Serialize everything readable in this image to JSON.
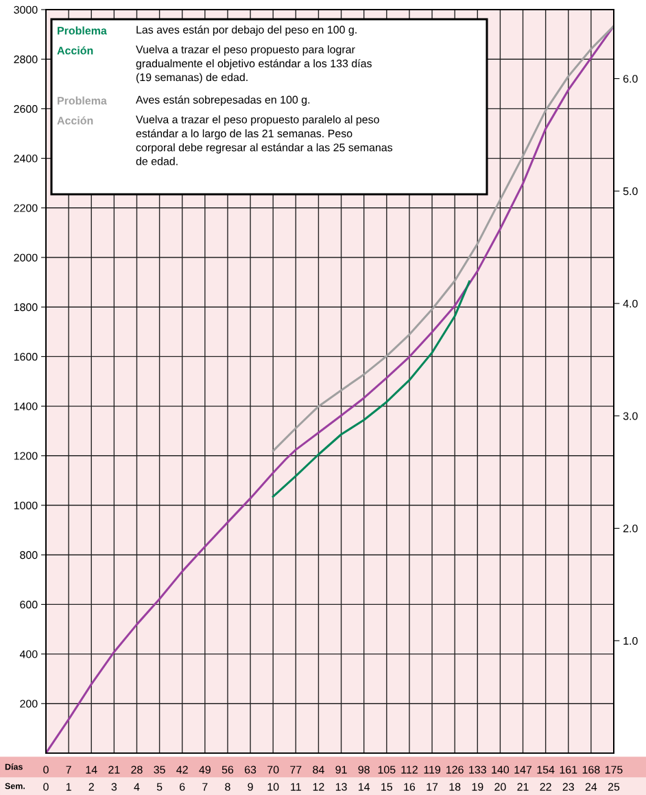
{
  "chart_data": {
    "type": "line",
    "xlabel": "Días",
    "x2label": "Sem.",
    "xlim": [
      0,
      175
    ],
    "xticks": [
      0,
      7,
      14,
      21,
      28,
      35,
      42,
      49,
      56,
      63,
      70,
      77,
      84,
      91,
      98,
      105,
      112,
      119,
      126,
      133,
      140,
      147,
      154,
      161,
      168,
      175
    ],
    "x2lim": [
      0,
      25
    ],
    "x2ticks": [
      0,
      1,
      2,
      3,
      4,
      5,
      6,
      7,
      8,
      9,
      10,
      11,
      12,
      13,
      14,
      15,
      16,
      17,
      18,
      19,
      20,
      21,
      22,
      23,
      24,
      25
    ],
    "ylim": [
      0,
      3000
    ],
    "yticks": [
      200,
      400,
      600,
      800,
      1000,
      1200,
      1400,
      1600,
      1800,
      2000,
      2200,
      2400,
      2600,
      2800,
      3000
    ],
    "y2lim": [
      0,
      6.614
    ],
    "y2ticks": [
      {
        "value": 1,
        "label": "1.0"
      },
      {
        "value": 2,
        "label": "2.0"
      },
      {
        "value": 3,
        "label": "3.0"
      },
      {
        "value": 4,
        "label": "4.0"
      },
      {
        "value": 5,
        "label": "5.0"
      },
      {
        "value": 6,
        "label": "6.0"
      }
    ],
    "grid": true,
    "line_style": "solid",
    "marker": "none",
    "series": [
      {
        "color": "#9b3fa0",
        "x": [
          0,
          7,
          14,
          21,
          28,
          35,
          42,
          49,
          56,
          63,
          70,
          74,
          77,
          84,
          91,
          98,
          105,
          112,
          119,
          126,
          133,
          140,
          147,
          154,
          161,
          168,
          175
        ],
        "values": [
          0,
          136,
          278,
          408,
          519,
          622,
          733,
          833,
          931,
          1028,
          1131,
          1187,
          1224,
          1293,
          1362,
          1433,
          1514,
          1599,
          1699,
          1805,
          1945,
          2115,
          2298,
          2519,
          2676,
          2805,
          2934
        ]
      },
      {
        "color": "#00875a",
        "x": [
          70,
          77,
          84,
          91,
          98,
          105,
          112,
          119,
          126,
          130.5
        ],
        "values": [
          1035,
          1118,
          1205,
          1286,
          1344,
          1417,
          1505,
          1616,
          1763,
          1903
        ]
      },
      {
        "color": "#a0a0a0",
        "x": [
          70,
          77,
          84,
          91,
          98,
          105,
          112,
          119,
          126,
          133,
          140,
          147,
          154,
          161,
          168,
          175
        ],
        "values": [
          1219,
          1311,
          1399,
          1464,
          1528,
          1602,
          1689,
          1791,
          1906,
          2055,
          2233,
          2409,
          2593,
          2731,
          2841,
          2934
        ]
      }
    ],
    "annotations": [
      "Problema",
      "Las aves están por debajo del peso en 100 g.",
      "Acción",
      "Vuelva a trazar el peso propuesto para lograr\ngradualmente el objetivo estándar a los 133 días\n(19 semanas) de edad.",
      "Problema",
      "Aves están sobrepesadas en 100 g.",
      "Acción",
      "Vuelva a trazar el peso propuesto paralelo al peso\nestándar a lo largo de las 21 semanas. Peso\ncorporal debe regresar al estándar a las 25 semanas\nde edad."
    ]
  }
}
